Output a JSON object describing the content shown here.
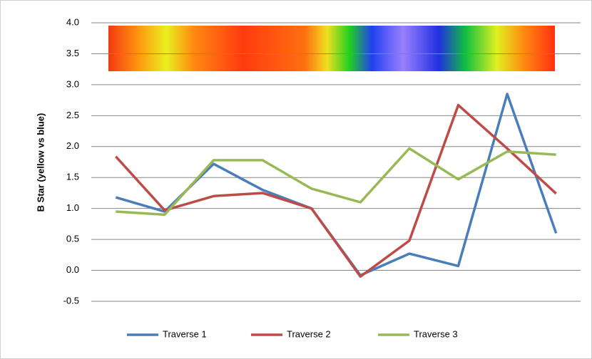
{
  "chart_data": {
    "type": "line",
    "y_label": "B Star (yellow vs blue)",
    "categories": [
      null,
      null,
      null,
      null,
      null,
      null,
      null,
      null,
      null,
      null
    ],
    "series": [
      {
        "name": "Traverse 1",
        "color": "#4a7ebb",
        "values": [
          1.18,
          0.95,
          1.72,
          1.3,
          1.0,
          -0.08,
          0.27,
          0.07,
          2.85,
          0.6
        ]
      },
      {
        "name": "Traverse 2",
        "color": "#be4b48",
        "values": [
          1.84,
          0.97,
          1.2,
          1.25,
          1.0,
          -0.1,
          0.48,
          2.67,
          1.97,
          1.24
        ]
      },
      {
        "name": "Traverse 3",
        "color": "#98b954",
        "values": [
          0.95,
          0.9,
          1.78,
          1.78,
          1.32,
          1.1,
          1.97,
          1.47,
          1.92,
          1.87
        ]
      }
    ],
    "ylim": [
      -0.5,
      4.0
    ],
    "yticks": [
      -0.5,
      {
        "value": 0,
        "label": "0.0"
      },
      0.5,
      {
        "value": 1,
        "label": "1.0"
      },
      1.5,
      {
        "value": 2,
        "label": "2.0"
      },
      2.5,
      {
        "value": 3,
        "label": "3.0"
      },
      3.5,
      {
        "value": 4,
        "label": "4.0"
      }
    ],
    "grid": true,
    "legend": "bottom"
  }
}
